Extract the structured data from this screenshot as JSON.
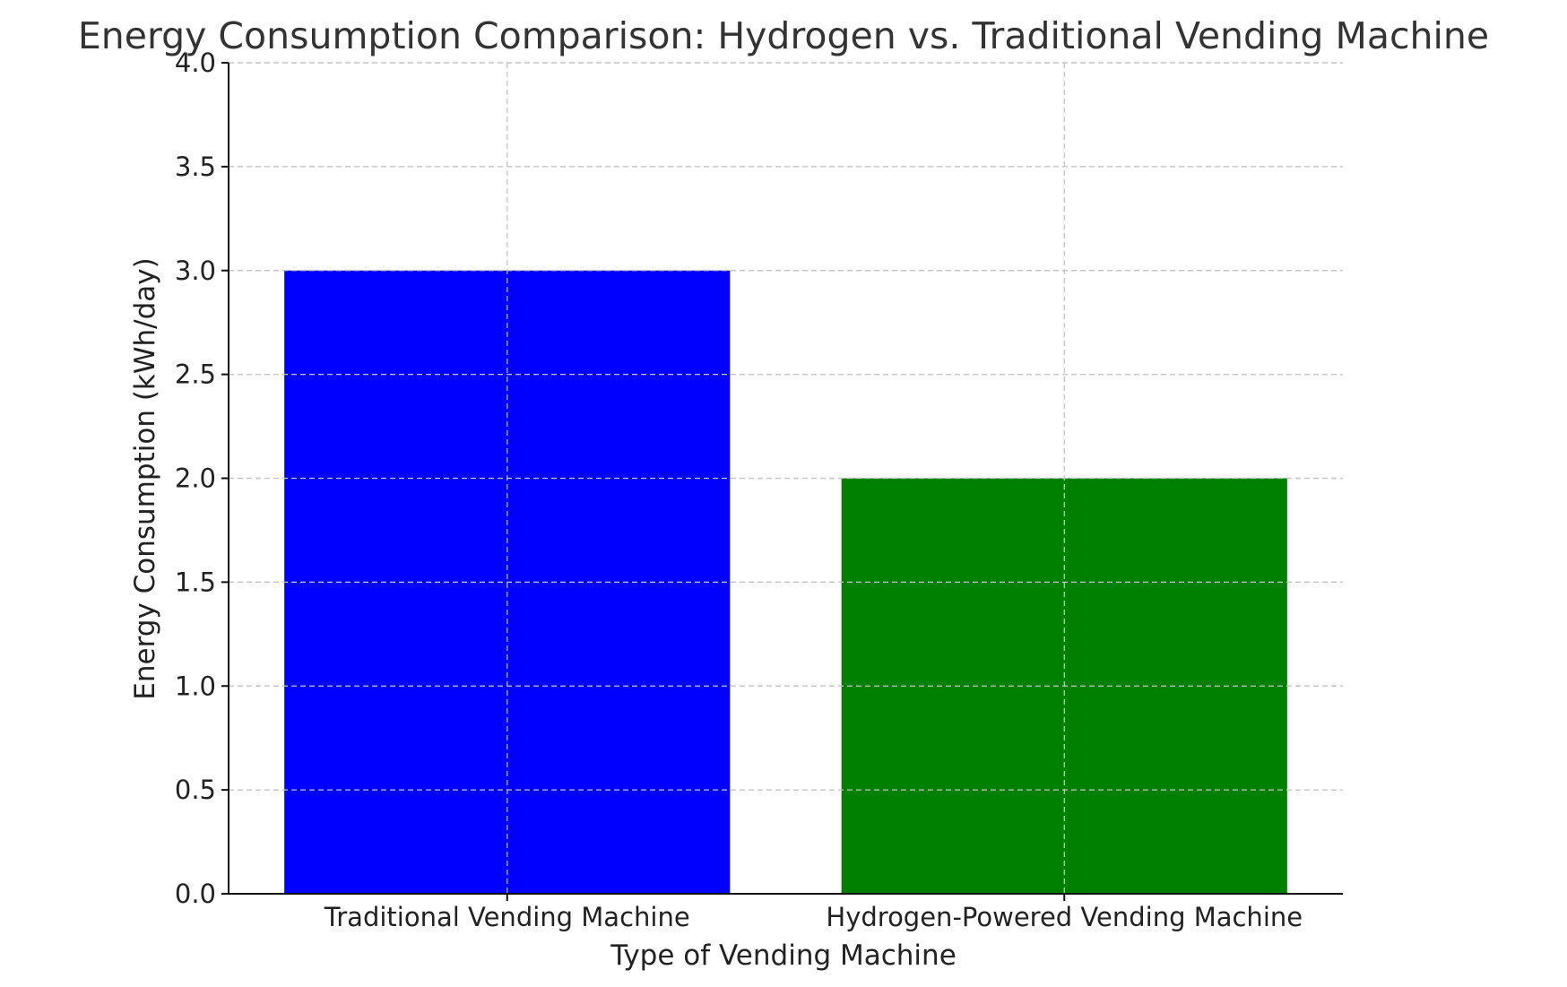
{
  "chart_data": {
    "type": "bar",
    "title": "Energy Consumption Comparison: Hydrogen vs. Traditional Vending Machine",
    "xlabel": "Type of Vending Machine",
    "ylabel": "Energy Consumption (kWh/day)",
    "categories": [
      "Traditional Vending Machine",
      "Hydrogen-Powered Vending Machine"
    ],
    "values": [
      3.0,
      2.0
    ],
    "bar_colors": [
      "#0000ff",
      "#008000"
    ],
    "ylim": [
      0,
      4.0
    ],
    "yticks": [
      "0.0",
      "0.5",
      "1.0",
      "1.5",
      "2.0",
      "2.5",
      "3.0",
      "3.5",
      "4.0"
    ],
    "grid": true
  }
}
